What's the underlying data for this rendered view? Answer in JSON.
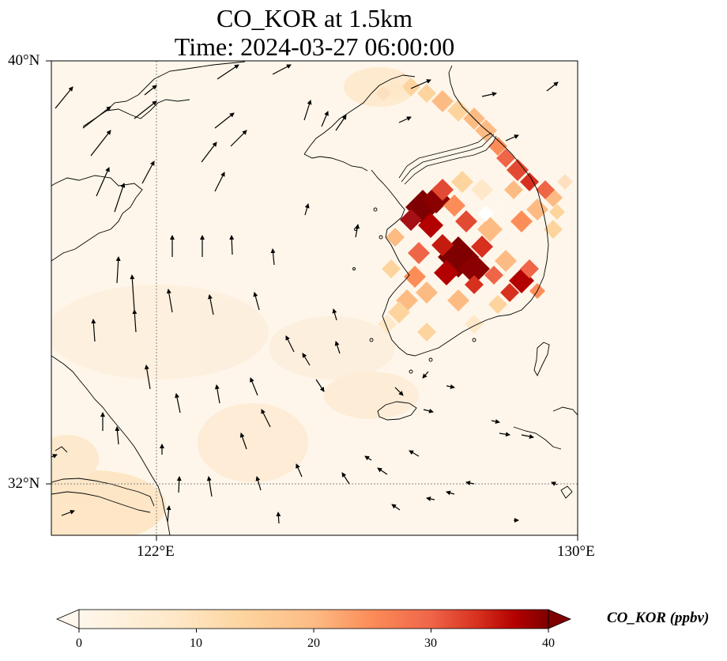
{
  "title": {
    "line1": "CO_KOR at 1.5km",
    "line2": "Time: 2024-03-27 06:00:00"
  },
  "axes": {
    "lon_ticks": [
      "122°E",
      "130°E"
    ],
    "lat_ticks": [
      "40°N",
      "32°N"
    ],
    "lon_range": [
      120,
      130
    ],
    "lat_range": [
      31,
      40
    ]
  },
  "colorbar": {
    "label": "CO_KOR (ppbv)",
    "ticks": [
      "0",
      "10",
      "20",
      "30",
      "40"
    ],
    "range": [
      0,
      40
    ],
    "colormap": "OrRd",
    "extend": "both"
  },
  "colors": {
    "low": "#fff7ec",
    "mid": "#fdd49e",
    "high": "#d7301f",
    "max": "#7f0000"
  }
}
